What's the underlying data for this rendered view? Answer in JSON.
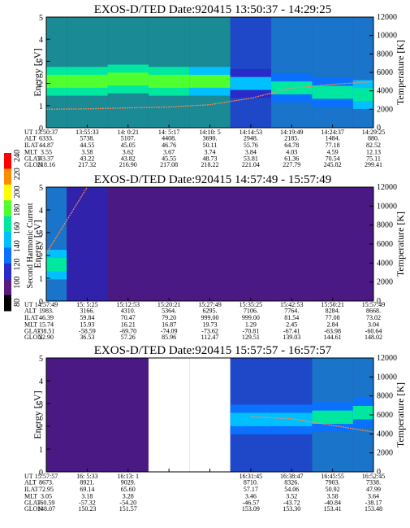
{
  "colorbar": {
    "label": "Second Harmonic Current",
    "ticks": [
      "80",
      "100",
      "120",
      "140",
      "160",
      "180",
      "200",
      "220",
      "240"
    ],
    "colors": [
      "#000000",
      "#5a1a80",
      "#2a2ac8",
      "#0a70ff",
      "#00c0ff",
      "#00e8a0",
      "#50ff30",
      "#ffff00",
      "#ff8c00",
      "#ff0000"
    ]
  },
  "panels": [
    {
      "title": "EXOS-D/TED   Date:920415   13:50:37 - 14:29:25",
      "ylabel": "Energy [eV]",
      "y2label": "Temperature [K]",
      "yticks": [
        "0",
        "1",
        "2",
        "3",
        "4",
        "5"
      ],
      "y2ticks": [
        "0",
        "2000",
        "4000",
        "6000",
        "8000",
        "10000",
        "12000"
      ],
      "rows": [
        {
          "label": "UT",
          "values": [
            "13:50:37",
            "13:55:33",
            "14:  0:21",
            "14:  5:17",
            "14:10:  5",
            "14:14:53",
            "14:19:49",
            "14:24:37",
            "14:29:25"
          ]
        },
        {
          "label": "ALT",
          "values": [
            "6333.",
            "5738.",
            "5107.",
            "4408.",
            "3690.",
            "2948.",
            "2185.",
            "1484.",
            "880."
          ]
        },
        {
          "label": "ILAT",
          "values": [
            "44.87",
            "44.55",
            "45.05",
            "46.76",
            "50.11",
            "55.76",
            "64.78",
            "77.18",
            "82.52"
          ]
        },
        {
          "label": "MLT",
          "values": [
            "3.55",
            "3.58",
            "3.62",
            "3.67",
            "3.74",
            "3.84",
            "4.03",
            "4.59",
            "12.13"
          ]
        },
        {
          "label": "GLAT",
          "values": [
            "43.37",
            "43.22",
            "43.82",
            "45.55",
            "48.73",
            "53.81",
            "61.36",
            "70.54",
            "75.11"
          ]
        },
        {
          "label": "GLON",
          "values": [
            "218.16",
            "217.32",
            "216.90",
            "217.08",
            "218.22",
            "221.04",
            "227.79",
            "245.82",
            "299.41"
          ]
        }
      ]
    },
    {
      "title": "EXOS-D/TED   Date:920415   14:57:49 - 15:57:49",
      "ylabel": "Energy [eV]",
      "y2label": "Temperature [K]",
      "yticks": [
        "0",
        "1",
        "2",
        "3",
        "4",
        "5"
      ],
      "y2ticks": [
        "0",
        "2000",
        "4000",
        "6000",
        "8000",
        "10000",
        "12000"
      ],
      "rows": [
        {
          "label": "UT",
          "values": [
            "14:57:49",
            "15:  5:25",
            "15:12:53",
            "15:20:21",
            "15:27:49",
            "15:35:25",
            "15:42:53",
            "15:50:21",
            "15:57:49"
          ]
        },
        {
          "label": "ALT",
          "values": [
            "1983.",
            "3166.",
            "4310.",
            "5364.",
            "6295.",
            "7106.",
            "7764.",
            "8284.",
            "8668."
          ]
        },
        {
          "label": "ILAT",
          "values": [
            "46.39",
            "59.84",
            "70.47",
            "79.20",
            "999.00",
            "999.00",
            "81.54",
            "77.08",
            "73.02"
          ]
        },
        {
          "label": "MLT",
          "values": [
            "15.74",
            "15.93",
            "16.21",
            "16.87",
            "19.73",
            "1.29",
            "2.45",
            "2.84",
            "3.04"
          ]
        },
        {
          "label": "GLAT",
          "values": [
            "-38.51",
            "-58.59",
            "-69.70",
            "-74.09",
            "-73.62",
            "-70.81",
            "-67.41",
            "-63.98",
            "-60.64"
          ]
        },
        {
          "label": "GLON",
          "values": [
            "22.90",
            "36.53",
            "57.26",
            "85.96",
            "112.47",
            "129.51",
            "139.03",
            "144.61",
            "148.02"
          ]
        }
      ]
    },
    {
      "title": "EXOS-D/TED   Date:920415   15:57:57 - 16:57:57",
      "ylabel": "Energy [eV]",
      "y2label": "Temperature [K]",
      "yticks": [
        "0",
        "1",
        "2",
        "3",
        "4",
        "5"
      ],
      "y2ticks": [
        "0",
        "2000",
        "4000",
        "6000",
        "8000",
        "10000",
        "12000"
      ],
      "rows": [
        {
          "label": "UT",
          "values": [
            "15:57:57",
            "16:  5:33",
            "16:13:  1",
            "",
            "",
            "16:31:45",
            "16:38:47",
            "16:45:55",
            "16:52:45"
          ]
        },
        {
          "label": "ALT",
          "values": [
            "8673.",
            "8921.",
            "9029.",
            "",
            "",
            "8710.",
            "8326.",
            "7903.",
            "7338."
          ]
        },
        {
          "label": "ILAT",
          "values": [
            "72.95",
            "69.14",
            "65.60",
            "",
            "",
            "57.17",
            "54.06",
            "50.92",
            "47.99"
          ]
        },
        {
          "label": "MLT",
          "values": [
            "3.05",
            "3.18",
            "3.28",
            "",
            "",
            "3.46",
            "3.52",
            "3.58",
            "3.64"
          ]
        },
        {
          "label": "GLAT",
          "values": [
            "-60.59",
            "-57.32",
            "-54.20",
            "",
            "",
            "-46.57",
            "-43.72",
            "-40.84",
            "-38.17"
          ]
        },
        {
          "label": "GLON",
          "values": [
            "148.07",
            "150.23",
            "151.57",
            "",
            "",
            "153.09",
            "153.30",
            "153.41",
            "153.48"
          ]
        }
      ]
    }
  ],
  "chart_data": [
    {
      "type": "heatmap",
      "title": "EXOS-D/TED   Date:920415   13:50:37 - 14:29:25",
      "xlabel": "UT",
      "ylabel": "Energy [eV]",
      "y2label": "Temperature [K]",
      "ylim": [
        0,
        5
      ],
      "y2lim": [
        0,
        12000
      ],
      "x": [
        "13:50:37",
        "13:55:33",
        "14:  0:21",
        "14:  5:17",
        "14:10:  5",
        "14:14:53",
        "14:19:49",
        "14:24:37",
        "14:29:25"
      ],
      "temperature_K": [
        2000,
        2050,
        2150,
        2250,
        2500,
        3200,
        4300,
        4700,
        5000
      ],
      "peak_energy_eV": [
        2.1,
        2.1,
        2.2,
        2.1,
        2.1,
        2.0,
        1.8,
        1.6,
        1.5
      ],
      "peak_level": [
        180,
        185,
        180,
        180,
        175,
        135,
        155,
        150,
        160
      ]
    },
    {
      "type": "heatmap",
      "title": "EXOS-D/TED   Date:920415   14:57:49 - 15:57:49",
      "xlabel": "UT",
      "ylabel": "Energy [eV]",
      "y2label": "Temperature [K]",
      "ylim": [
        0,
        5
      ],
      "y2lim": [
        0,
        12000
      ],
      "x": [
        "14:57:49",
        "15:  5:25",
        "15:12:53",
        "15:20:21",
        "15:27:49",
        "15:35:25",
        "15:42:53",
        "15:50:21",
        "15:57:49"
      ],
      "temperature_K": [
        5000,
        12000,
        null,
        null,
        null,
        null,
        null,
        null,
        null
      ],
      "peak_energy_eV": [
        1.6,
        1.7,
        null,
        null,
        null,
        null,
        null,
        null,
        null
      ],
      "peak_level": [
        160,
        110,
        100,
        100,
        100,
        100,
        100,
        100,
        100
      ]
    },
    {
      "type": "heatmap",
      "title": "EXOS-D/TED   Date:920415   15:57:57 - 16:57:57",
      "xlabel": "UT",
      "ylabel": "Energy [eV]",
      "y2label": "Temperature [K]",
      "ylim": [
        0,
        5
      ],
      "y2lim": [
        0,
        12000
      ],
      "x": [
        "15:57:57",
        "16:  5:33",
        "16:13:  1",
        "",
        "",
        "16:31:45",
        "16:38:47",
        "16:45:55",
        "16:52:45"
      ],
      "temperature_K": [
        null,
        null,
        null,
        null,
        null,
        5800,
        5600,
        4900,
        4200
      ],
      "peak_energy_eV": [
        null,
        null,
        null,
        null,
        null,
        2.3,
        2.3,
        2.4,
        2.6
      ],
      "peak_level": [
        100,
        100,
        100,
        null,
        null,
        140,
        140,
        150,
        150
      ]
    }
  ]
}
